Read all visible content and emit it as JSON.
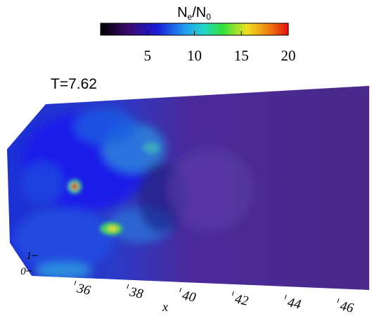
{
  "colorbar": {
    "label_parts": [
      "N",
      "e",
      "/N",
      "0"
    ],
    "range": [
      0,
      20
    ],
    "ticks": [
      5,
      10,
      15,
      20
    ]
  },
  "annotation": "T=7.62",
  "x_axis": {
    "label": "x",
    "ticks": [
      36,
      38,
      40,
      42,
      44,
      46
    ]
  },
  "y_axis": {
    "ticks": [
      0,
      1
    ]
  }
}
